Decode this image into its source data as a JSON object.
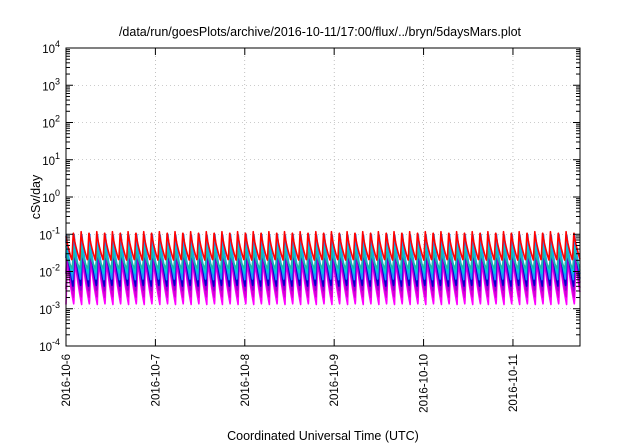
{
  "chart_data": {
    "type": "line",
    "title": "/data/run/goesPlots/archive/2016-10-11/17:00/flux/../bryn/5daysMars.plot",
    "xlabel": "Coordinated Universal Time (UTC)",
    "ylabel": "cSv/day",
    "x_ticks": [
      "2016-10-6",
      "2016-10-7",
      "2016-10-8",
      "2016-10-9",
      "2016-10-10",
      "2016-10-11"
    ],
    "xlim": [
      "2016-10-06 00:00",
      "2016-10-11 18:00"
    ],
    "y_scale": "log",
    "ylim": [
      0.0001,
      10000
    ],
    "y_ticks": [
      {
        "base": "10",
        "exp": "4"
      },
      {
        "base": "10",
        "exp": "3"
      },
      {
        "base": "10",
        "exp": "2"
      },
      {
        "base": "10",
        "exp": "1"
      },
      {
        "base": "10",
        "exp": "0"
      },
      {
        "base": "10",
        "exp": "-1"
      },
      {
        "base": "10",
        "exp": "-2"
      },
      {
        "base": "10",
        "exp": "-3"
      },
      {
        "base": "10",
        "exp": "-4"
      }
    ],
    "grid": true,
    "oscillation_period_hours": 2.1,
    "series": [
      {
        "color": "#ff00ff",
        "peak": 0.025,
        "trough": 0.0013
      },
      {
        "color": "#d400d4",
        "peak": 0.03,
        "trough": 0.002
      },
      {
        "color": "#9400d3",
        "peak": 0.045,
        "trough": 0.003
      },
      {
        "color": "#0000cd",
        "peak": 0.08,
        "trough": 0.004
      },
      {
        "color": "#1e90ff",
        "peak": 0.11,
        "trough": 0.006
      },
      {
        "color": "#00ced1",
        "peak": 0.05,
        "trough": 0.009
      },
      {
        "color": "#20b2aa",
        "peak": 0.035,
        "trough": 0.012
      },
      {
        "color": "#ff0000",
        "peak": 0.12,
        "trough": 0.02
      }
    ]
  }
}
